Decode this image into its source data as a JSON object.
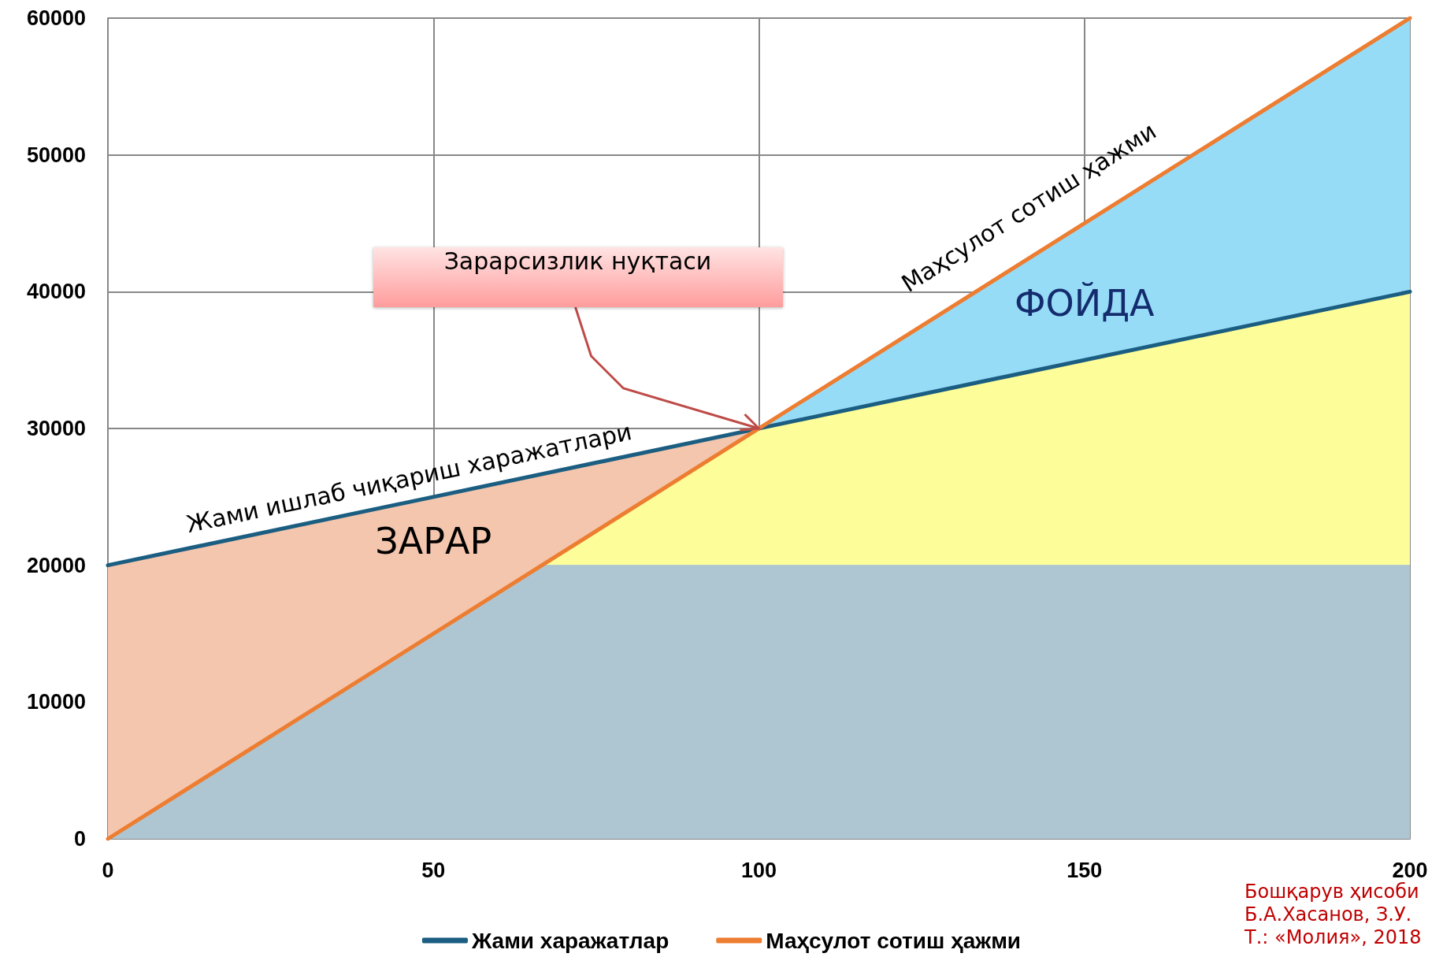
{
  "chart_data": {
    "type": "line",
    "xlim": [
      0,
      200
    ],
    "xticks": [
      0,
      50,
      100,
      150,
      200
    ],
    "ylim": [
      0,
      60000
    ],
    "yticks": [
      0,
      10000,
      20000,
      30000,
      40000,
      50000,
      60000
    ],
    "grid": true,
    "legend": "bottom",
    "marker": "none",
    "series": [
      {
        "type": "area",
        "name": "ФОЙДА",
        "color": "#97dcf7",
        "x": [
          100,
          200
        ],
        "values": [
          30000,
          60000
        ]
      },
      {
        "type": "area",
        "name": "ЗАРАР",
        "color": "#f4c6ad",
        "x": [
          0,
          100
        ],
        "values": [
          20000,
          30000
        ]
      },
      {
        "type": "area",
        "color": "#fdfd99",
        "x": [
          0,
          100,
          200
        ],
        "values": [
          0,
          30000,
          40000
        ]
      },
      {
        "type": "area",
        "color": "#aec6d2",
        "x": [
          0,
          66.7,
          200
        ],
        "values": [
          0,
          20000,
          20000
        ]
      },
      {
        "type": "line",
        "name": "Жами харажатлар",
        "color": "#1b5e82",
        "x": [
          0,
          200
        ],
        "values": [
          20000,
          40000
        ]
      },
      {
        "type": "line",
        "name": "Маҳсулот сотиш ҳажми",
        "color": "#ed7d31",
        "x": [
          0,
          200
        ],
        "values": [
          0,
          60000
        ]
      }
    ],
    "annotations": [
      "Жами ишлаб чиқариш харажатлари",
      "Маҳсулот сотиш ҳажми",
      "Зарарсизлик  нуқтаси",
      "Бошқарув ҳисоби",
      "Б.А.Хасанов, З.У.",
      "Т.: «Молия», 2018"
    ]
  }
}
